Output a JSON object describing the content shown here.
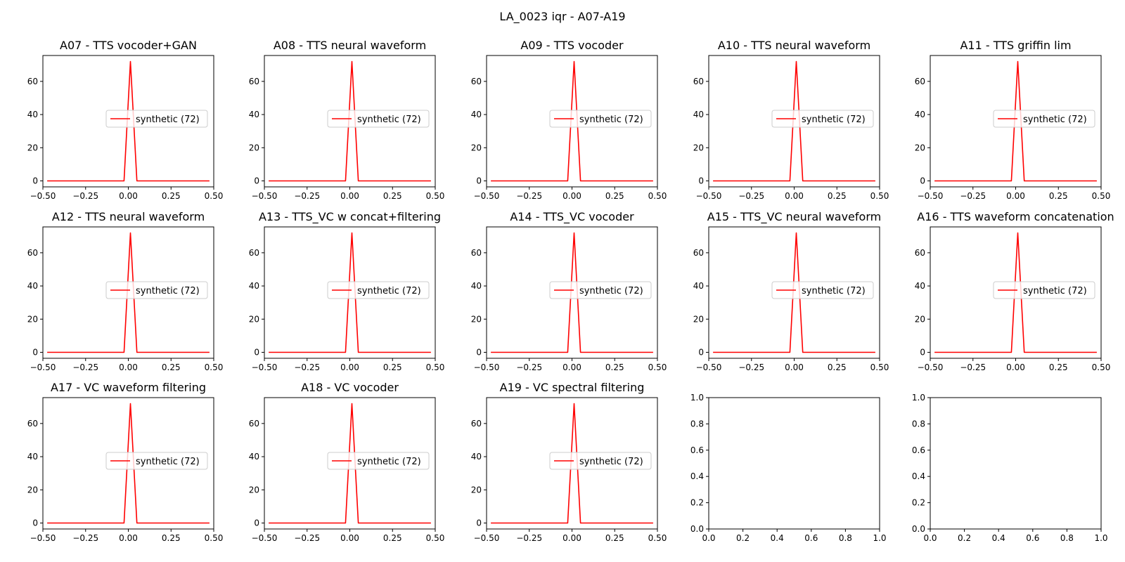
{
  "figure": {
    "suptitle": "LA_0023 iqr - A07-A19"
  },
  "chart_data": [
    {
      "type": "line",
      "title": "A07 - TTS vocoder+GAN",
      "xlabel": "",
      "ylabel": "",
      "xlim": [
        -0.5,
        0.5
      ],
      "ylim": [
        -3.6,
        75.6
      ],
      "xticks": [
        -0.5,
        -0.25,
        0.0,
        0.25,
        0.5
      ],
      "xtick_labels": [
        "−0.50",
        "−0.25",
        "0.00",
        "0.25",
        "0.50"
      ],
      "yticks": [
        0,
        20,
        40,
        60
      ],
      "ytick_labels": [
        "0",
        "20",
        "40",
        "60"
      ],
      "legend": "center-right",
      "grid": false,
      "series": [
        {
          "name": "synthetic (72)",
          "color": "#ff0000",
          "x": [
            -0.475,
            -0.025,
            0.0125,
            0.05,
            0.475
          ],
          "y": [
            0,
            0,
            72,
            0,
            0
          ]
        }
      ]
    },
    {
      "type": "line",
      "title": "A08 - TTS neural waveform",
      "xlabel": "",
      "ylabel": "",
      "xlim": [
        -0.5,
        0.5
      ],
      "ylim": [
        -3.6,
        75.6
      ],
      "xticks": [
        -0.5,
        -0.25,
        0.0,
        0.25,
        0.5
      ],
      "xtick_labels": [
        "−0.50",
        "−0.25",
        "0.00",
        "0.25",
        "0.50"
      ],
      "yticks": [
        0,
        20,
        40,
        60
      ],
      "ytick_labels": [
        "0",
        "20",
        "40",
        "60"
      ],
      "legend": "center-right",
      "grid": false,
      "series": [
        {
          "name": "synthetic (72)",
          "color": "#ff0000",
          "x": [
            -0.475,
            -0.025,
            0.0125,
            0.05,
            0.475
          ],
          "y": [
            0,
            0,
            72,
            0,
            0
          ]
        }
      ]
    },
    {
      "type": "line",
      "title": "A09 - TTS vocoder",
      "xlabel": "",
      "ylabel": "",
      "xlim": [
        -0.5,
        0.5
      ],
      "ylim": [
        -3.6,
        75.6
      ],
      "xticks": [
        -0.5,
        -0.25,
        0.0,
        0.25,
        0.5
      ],
      "xtick_labels": [
        "−0.50",
        "−0.25",
        "0.00",
        "0.25",
        "0.50"
      ],
      "yticks": [
        0,
        20,
        40,
        60
      ],
      "ytick_labels": [
        "0",
        "20",
        "40",
        "60"
      ],
      "legend": "center-right",
      "grid": false,
      "series": [
        {
          "name": "synthetic (72)",
          "color": "#ff0000",
          "x": [
            -0.475,
            -0.025,
            0.0125,
            0.05,
            0.475
          ],
          "y": [
            0,
            0,
            72,
            0,
            0
          ]
        }
      ]
    },
    {
      "type": "line",
      "title": "A10 - TTS neural waveform",
      "xlabel": "",
      "ylabel": "",
      "xlim": [
        -0.5,
        0.5
      ],
      "ylim": [
        -3.6,
        75.6
      ],
      "xticks": [
        -0.5,
        -0.25,
        0.0,
        0.25,
        0.5
      ],
      "xtick_labels": [
        "−0.50",
        "−0.25",
        "0.00",
        "0.25",
        "0.50"
      ],
      "yticks": [
        0,
        20,
        40,
        60
      ],
      "ytick_labels": [
        "0",
        "20",
        "40",
        "60"
      ],
      "legend": "center-right",
      "grid": false,
      "series": [
        {
          "name": "synthetic (72)",
          "color": "#ff0000",
          "x": [
            -0.475,
            -0.025,
            0.0125,
            0.05,
            0.475
          ],
          "y": [
            0,
            0,
            72,
            0,
            0
          ]
        }
      ]
    },
    {
      "type": "line",
      "title": "A11 - TTS griffin lim",
      "xlabel": "",
      "ylabel": "",
      "xlim": [
        -0.5,
        0.5
      ],
      "ylim": [
        -3.6,
        75.6
      ],
      "xticks": [
        -0.5,
        -0.25,
        0.0,
        0.25,
        0.5
      ],
      "xtick_labels": [
        "−0.50",
        "−0.25",
        "0.00",
        "0.25",
        "0.50"
      ],
      "yticks": [
        0,
        20,
        40,
        60
      ],
      "ytick_labels": [
        "0",
        "20",
        "40",
        "60"
      ],
      "legend": "center-right",
      "grid": false,
      "series": [
        {
          "name": "synthetic (72)",
          "color": "#ff0000",
          "x": [
            -0.475,
            -0.025,
            0.0125,
            0.05,
            0.475
          ],
          "y": [
            0,
            0,
            72,
            0,
            0
          ]
        }
      ]
    },
    {
      "type": "line",
      "title": "A12 - TTS neural waveform",
      "xlabel": "",
      "ylabel": "",
      "xlim": [
        -0.5,
        0.5
      ],
      "ylim": [
        -3.6,
        75.6
      ],
      "xticks": [
        -0.5,
        -0.25,
        0.0,
        0.25,
        0.5
      ],
      "xtick_labels": [
        "−0.50",
        "−0.25",
        "0.00",
        "0.25",
        "0.50"
      ],
      "yticks": [
        0,
        20,
        40,
        60
      ],
      "ytick_labels": [
        "0",
        "20",
        "40",
        "60"
      ],
      "legend": "center-right",
      "grid": false,
      "series": [
        {
          "name": "synthetic (72)",
          "color": "#ff0000",
          "x": [
            -0.475,
            -0.025,
            0.0125,
            0.05,
            0.475
          ],
          "y": [
            0,
            0,
            72,
            0,
            0
          ]
        }
      ]
    },
    {
      "type": "line",
      "title": "A13 - TTS_VC w concat+filtering",
      "xlabel": "",
      "ylabel": "",
      "xlim": [
        -0.5,
        0.5
      ],
      "ylim": [
        -3.6,
        75.6
      ],
      "xticks": [
        -0.5,
        -0.25,
        0.0,
        0.25,
        0.5
      ],
      "xtick_labels": [
        "−0.50",
        "−0.25",
        "0.00",
        "0.25",
        "0.50"
      ],
      "yticks": [
        0,
        20,
        40,
        60
      ],
      "ytick_labels": [
        "0",
        "20",
        "40",
        "60"
      ],
      "legend": "center-right",
      "grid": false,
      "series": [
        {
          "name": "synthetic (72)",
          "color": "#ff0000",
          "x": [
            -0.475,
            -0.025,
            0.0125,
            0.05,
            0.475
          ],
          "y": [
            0,
            0,
            72,
            0,
            0
          ]
        }
      ]
    },
    {
      "type": "line",
      "title": "A14 - TTS_VC vocoder",
      "xlabel": "",
      "ylabel": "",
      "xlim": [
        -0.5,
        0.5
      ],
      "ylim": [
        -3.6,
        75.6
      ],
      "xticks": [
        -0.5,
        -0.25,
        0.0,
        0.25,
        0.5
      ],
      "xtick_labels": [
        "−0.50",
        "−0.25",
        "0.00",
        "0.25",
        "0.50"
      ],
      "yticks": [
        0,
        20,
        40,
        60
      ],
      "ytick_labels": [
        "0",
        "20",
        "40",
        "60"
      ],
      "legend": "center-right",
      "grid": false,
      "series": [
        {
          "name": "synthetic (72)",
          "color": "#ff0000",
          "x": [
            -0.475,
            -0.025,
            0.0125,
            0.05,
            0.475
          ],
          "y": [
            0,
            0,
            72,
            0,
            0
          ]
        }
      ]
    },
    {
      "type": "line",
      "title": "A15 - TTS_VC neural waveform",
      "xlabel": "",
      "ylabel": "",
      "xlim": [
        -0.5,
        0.5
      ],
      "ylim": [
        -3.6,
        75.6
      ],
      "xticks": [
        -0.5,
        -0.25,
        0.0,
        0.25,
        0.5
      ],
      "xtick_labels": [
        "−0.50",
        "−0.25",
        "0.00",
        "0.25",
        "0.50"
      ],
      "yticks": [
        0,
        20,
        40,
        60
      ],
      "ytick_labels": [
        "0",
        "20",
        "40",
        "60"
      ],
      "legend": "center-right",
      "grid": false,
      "series": [
        {
          "name": "synthetic (72)",
          "color": "#ff0000",
          "x": [
            -0.475,
            -0.025,
            0.0125,
            0.05,
            0.475
          ],
          "y": [
            0,
            0,
            72,
            0,
            0
          ]
        }
      ]
    },
    {
      "type": "line",
      "title": "A16 - TTS waveform concatenation",
      "xlabel": "",
      "ylabel": "",
      "xlim": [
        -0.5,
        0.5
      ],
      "ylim": [
        -3.6,
        75.6
      ],
      "xticks": [
        -0.5,
        -0.25,
        0.0,
        0.25,
        0.5
      ],
      "xtick_labels": [
        "−0.50",
        "−0.25",
        "0.00",
        "0.25",
        "0.50"
      ],
      "yticks": [
        0,
        20,
        40,
        60
      ],
      "ytick_labels": [
        "0",
        "20",
        "40",
        "60"
      ],
      "legend": "center-right",
      "grid": false,
      "series": [
        {
          "name": "synthetic (72)",
          "color": "#ff0000",
          "x": [
            -0.475,
            -0.025,
            0.0125,
            0.05,
            0.475
          ],
          "y": [
            0,
            0,
            72,
            0,
            0
          ]
        }
      ]
    },
    {
      "type": "line",
      "title": "A17 - VC waveform filtering",
      "xlabel": "",
      "ylabel": "",
      "xlim": [
        -0.5,
        0.5
      ],
      "ylim": [
        -3.6,
        75.6
      ],
      "xticks": [
        -0.5,
        -0.25,
        0.0,
        0.25,
        0.5
      ],
      "xtick_labels": [
        "−0.50",
        "−0.25",
        "0.00",
        "0.25",
        "0.50"
      ],
      "yticks": [
        0,
        20,
        40,
        60
      ],
      "ytick_labels": [
        "0",
        "20",
        "40",
        "60"
      ],
      "legend": "center-right",
      "grid": false,
      "series": [
        {
          "name": "synthetic (72)",
          "color": "#ff0000",
          "x": [
            -0.475,
            -0.025,
            0.0125,
            0.05,
            0.475
          ],
          "y": [
            0,
            0,
            72,
            0,
            0
          ]
        }
      ]
    },
    {
      "type": "line",
      "title": "A18 - VC vocoder",
      "xlabel": "",
      "ylabel": "",
      "xlim": [
        -0.5,
        0.5
      ],
      "ylim": [
        -3.6,
        75.6
      ],
      "xticks": [
        -0.5,
        -0.25,
        0.0,
        0.25,
        0.5
      ],
      "xtick_labels": [
        "−0.50",
        "−0.25",
        "0.00",
        "0.25",
        "0.50"
      ],
      "yticks": [
        0,
        20,
        40,
        60
      ],
      "ytick_labels": [
        "0",
        "20",
        "40",
        "60"
      ],
      "legend": "center-right",
      "grid": false,
      "series": [
        {
          "name": "synthetic (72)",
          "color": "#ff0000",
          "x": [
            -0.475,
            -0.025,
            0.0125,
            0.05,
            0.475
          ],
          "y": [
            0,
            0,
            72,
            0,
            0
          ]
        }
      ]
    },
    {
      "type": "line",
      "title": "A19 - VC spectral filtering",
      "xlabel": "",
      "ylabel": "",
      "xlim": [
        -0.5,
        0.5
      ],
      "ylim": [
        -3.6,
        75.6
      ],
      "xticks": [
        -0.5,
        -0.25,
        0.0,
        0.25,
        0.5
      ],
      "xtick_labels": [
        "−0.50",
        "−0.25",
        "0.00",
        "0.25",
        "0.50"
      ],
      "yticks": [
        0,
        20,
        40,
        60
      ],
      "ytick_labels": [
        "0",
        "20",
        "40",
        "60"
      ],
      "legend": "center-right",
      "grid": false,
      "series": [
        {
          "name": "synthetic (72)",
          "color": "#ff0000",
          "x": [
            -0.475,
            -0.025,
            0.0125,
            0.05,
            0.475
          ],
          "y": [
            0,
            0,
            72,
            0,
            0
          ]
        }
      ]
    },
    {
      "type": "line",
      "title": "",
      "xlabel": "",
      "ylabel": "",
      "xlim": [
        0,
        1
      ],
      "ylim": [
        0,
        1
      ],
      "xticks": [
        0,
        0.2,
        0.4,
        0.6,
        0.8,
        1.0
      ],
      "xtick_labels": [
        "0.0",
        "0.2",
        "0.4",
        "0.6",
        "0.8",
        "1.0"
      ],
      "yticks": [
        0,
        0.2,
        0.4,
        0.6,
        0.8,
        1.0
      ],
      "ytick_labels": [
        "0.0",
        "0.2",
        "0.4",
        "0.6",
        "0.8",
        "1.0"
      ],
      "legend": "",
      "grid": false,
      "series": []
    },
    {
      "type": "line",
      "title": "",
      "xlabel": "",
      "ylabel": "",
      "xlim": [
        0,
        1
      ],
      "ylim": [
        0,
        1
      ],
      "xticks": [
        0,
        0.2,
        0.4,
        0.6,
        0.8,
        1.0
      ],
      "xtick_labels": [
        "0.0",
        "0.2",
        "0.4",
        "0.6",
        "0.8",
        "1.0"
      ],
      "yticks": [
        0,
        0.2,
        0.4,
        0.6,
        0.8,
        1.0
      ],
      "ytick_labels": [
        "0.0",
        "0.2",
        "0.4",
        "0.6",
        "0.8",
        "1.0"
      ],
      "legend": "",
      "grid": false,
      "series": []
    }
  ]
}
